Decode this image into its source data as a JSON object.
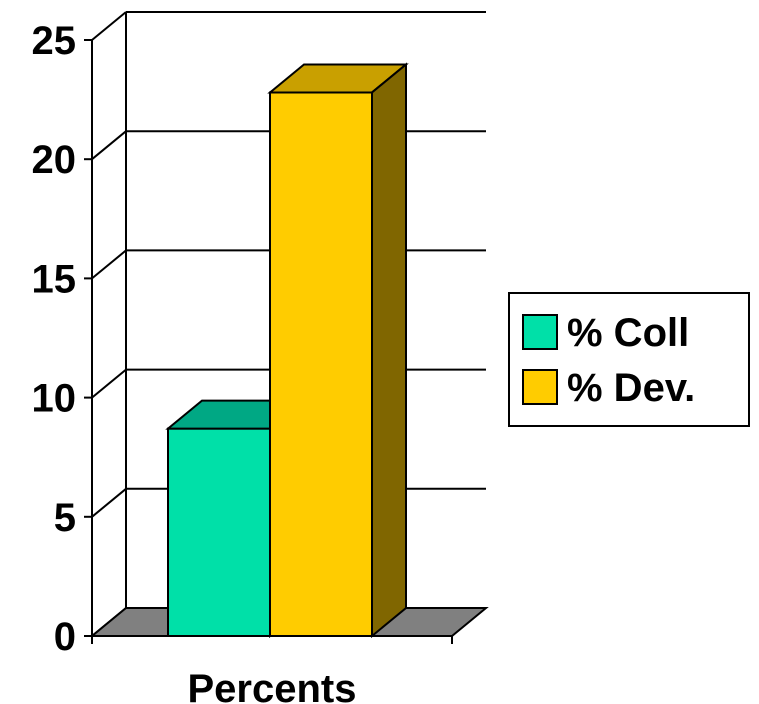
{
  "chart_data": {
    "type": "bar",
    "three_d": true,
    "categories": [
      "Percents"
    ],
    "series": [
      {
        "name": "% Coll",
        "values": [
          8.7
        ],
        "color": "#00E0A8",
        "top_color": "#00A884",
        "side_color": "#008866"
      },
      {
        "name": "% Dev.",
        "values": [
          22.8
        ],
        "color": "#FFCC00",
        "top_color": "#C9A000",
        "side_color": "#806600"
      }
    ],
    "title": "",
    "xlabel": "",
    "ylabel": "",
    "ylim": [
      0,
      25
    ],
    "yticks": [
      0,
      5,
      10,
      15,
      20,
      25
    ],
    "grid": true,
    "legend": "right",
    "floor_color": "#808080"
  }
}
